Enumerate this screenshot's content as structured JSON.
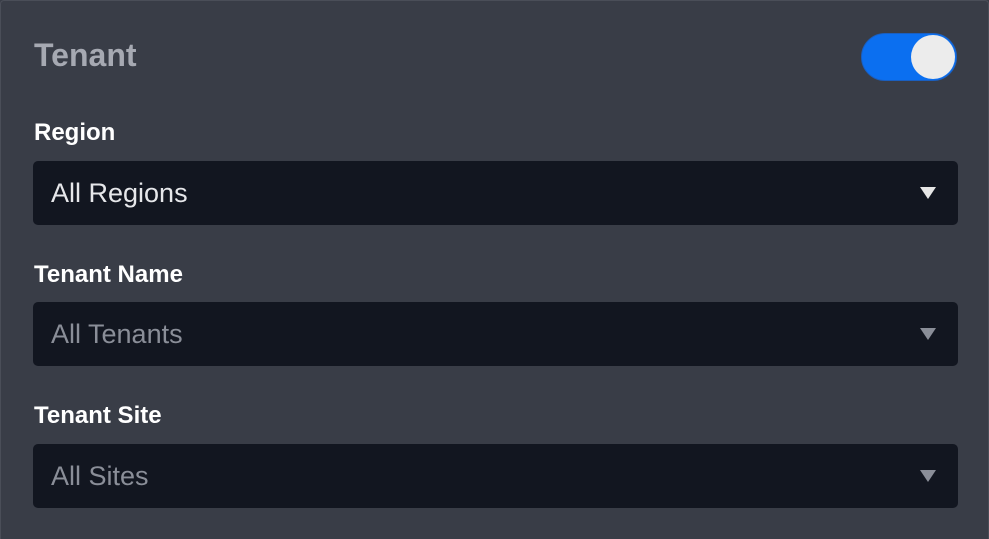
{
  "panel": {
    "title": "Tenant",
    "toggle_on": true,
    "accent": "#0b6ff0"
  },
  "fields": [
    {
      "label": "Region",
      "value": "All Regions",
      "enabled": true
    },
    {
      "label": "Tenant Name",
      "value": "All Tenants",
      "enabled": false
    },
    {
      "label": "Tenant Site",
      "value": "All Sites",
      "enabled": false
    }
  ]
}
